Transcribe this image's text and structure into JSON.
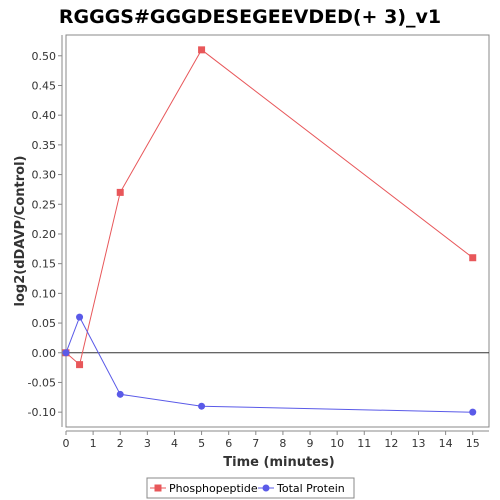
{
  "chart_data": {
    "type": "line",
    "title": "RGGGS#GGGDESEGEEVDED(+ 3)_v1",
    "xlabel": "Time (minutes)",
    "ylabel": "log2(dDAVP/Control)",
    "xlim": [
      0,
      15.6
    ],
    "ylim": [
      -0.125,
      0.535
    ],
    "x_ticks": [
      0,
      1,
      2,
      3,
      4,
      5,
      6,
      7,
      8,
      9,
      10,
      11,
      12,
      13,
      14,
      15
    ],
    "y_ticks": [
      -0.1,
      -0.05,
      0.0,
      0.05,
      0.1,
      0.15,
      0.2,
      0.25,
      0.3,
      0.35,
      0.4,
      0.45,
      0.5
    ],
    "y_tick_labels": [
      "-0.10",
      "-0.05",
      "0.00",
      "0.05",
      "0.10",
      "0.15",
      "0.20",
      "0.25",
      "0.30",
      "0.35",
      "0.40",
      "0.45",
      "0.50"
    ],
    "reference_line_y": 0,
    "grid": false,
    "legend_position": "bottom",
    "series": [
      {
        "name": "Phosphopeptide",
        "marker": "square",
        "color": "#e8575a",
        "x": [
          0,
          0.5,
          2,
          5,
          15
        ],
        "y": [
          0.0,
          -0.02,
          0.27,
          0.51,
          0.16
        ]
      },
      {
        "name": "Total Protein",
        "marker": "circle",
        "color": "#5a5ae8",
        "x": [
          0,
          0.5,
          2,
          5,
          15
        ],
        "y": [
          0.0,
          0.06,
          -0.07,
          -0.09,
          -0.1
        ]
      }
    ]
  }
}
